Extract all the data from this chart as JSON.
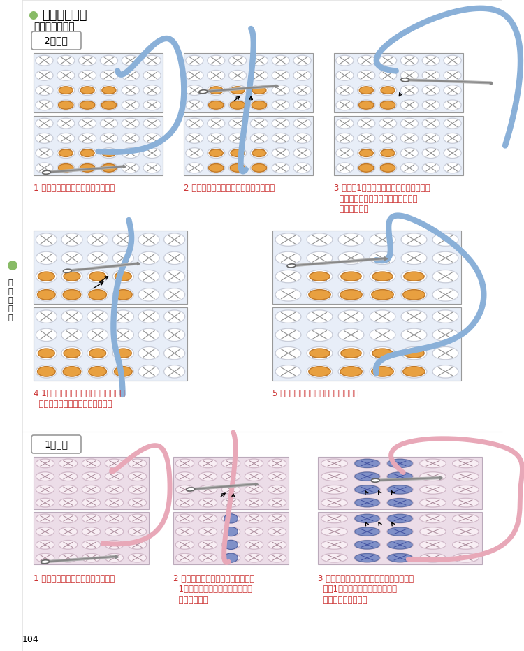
{
  "page_num": "104",
  "bg_color": "#ffffff",
  "title_dot_color": "#88bb66",
  "title_text": "ガーター編み",
  "subtitle_text": "「直線のとき」",
  "section1_label": "2段ごと",
  "section2_label": "1段ごと",
  "yarn_blue": "#8ab0d8",
  "yarn_pink": "#e8a8b8",
  "yarn_blue_dark": "#6090c0",
  "highlight_orange": "#e8a040",
  "highlight_blue": "#8090c8",
  "knit_bg_blue": "#e8eef8",
  "knit_bg_pink": "#ecdde8",
  "knit_line": "#909090",
  "knit_chain": "#c8c8d8",
  "caption_color": "#cc3333",
  "side_dot_color": "#88bb66",
  "captions_row1": [
    "1 手前の作り目の糸をすくいます。",
    "2 同こう側の作り目の糸をすくいます。",
    "3 手前は1目内側の下向きの目をすくい、\n  同こう側は半目内側の上向きの目を\n  すくいます。"
  ],
  "captions_row2": [
    "4 1目内側の下向きの目と、半目内側の\n  上向きの目を交互にすくいます。",
    "5 とじ糸を引きながら、すくいます。"
  ],
  "captions_row3": [
    "1 手前の作り目の糸をすくいます。",
    "2 同こう側の作り目の糸をすくい、\n  1目内側のシンカーループの目を\n  すくいます。",
    "3 各段の表メリヤス編み、裏メリヤス編み\n  とも1目内側のシンカーループを\n  すくってとじます。"
  ]
}
